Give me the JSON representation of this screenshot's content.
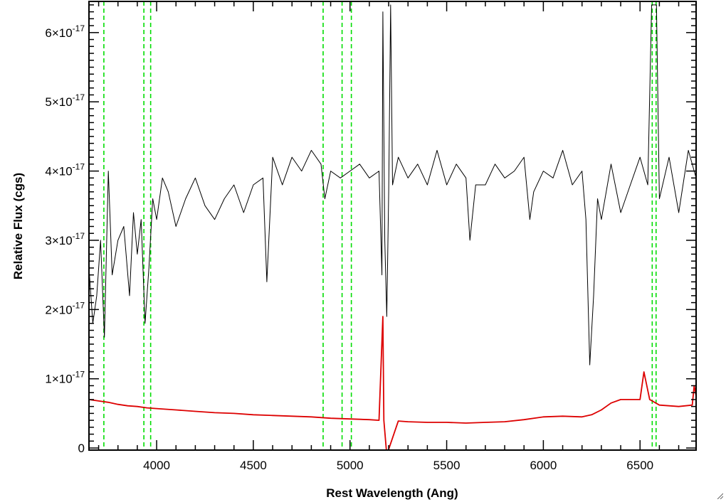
{
  "chart_data": {
    "type": "line",
    "title": "",
    "xlabel": "Rest Wavelength (Ang)",
    "ylabel": "Relative Flux (cgs)",
    "xlim": [
      3650,
      6790
    ],
    "ylim": [
      -0.03,
      6.45
    ],
    "y_scale_exponent": "-17",
    "x_ticks": [
      4000,
      4500,
      5000,
      5500,
      6000,
      6500
    ],
    "x_tick_labels": [
      "4000",
      "4500",
      "5000",
      "5500",
      "6000",
      "6500"
    ],
    "y_ticks": [
      0,
      1,
      2,
      3,
      4,
      5,
      6
    ],
    "y_tick_labels": [
      {
        "mantissa": "0",
        "exponent": ""
      },
      {
        "mantissa": "1×10",
        "exponent": "-17"
      },
      {
        "mantissa": "2×10",
        "exponent": "-17"
      },
      {
        "mantissa": "3×10",
        "exponent": "-17"
      },
      {
        "mantissa": "4×10",
        "exponent": "-17"
      },
      {
        "mantissa": "5×10",
        "exponent": "-17"
      },
      {
        "mantissa": "6×10",
        "exponent": "-17"
      }
    ],
    "grid": false,
    "colors": {
      "spectrum": "#000000",
      "error": "#dd0000",
      "lines": "#00dd00",
      "axes": "#000000"
    },
    "reference_lines": [
      3727,
      3934,
      3969,
      4861,
      4959,
      5007,
      6563,
      6583
    ],
    "series": [
      {
        "role": "spectrum",
        "x": [
          3650,
          3670,
          3690,
          3710,
          3730,
          3750,
          3770,
          3800,
          3830,
          3860,
          3880,
          3900,
          3920,
          3940,
          3960,
          3980,
          4000,
          4030,
          4060,
          4100,
          4150,
          4200,
          4250,
          4300,
          4350,
          4400,
          4450,
          4500,
          4550,
          4570,
          4600,
          4650,
          4700,
          4750,
          4800,
          4850,
          4870,
          4900,
          4950,
          5000,
          5050,
          5100,
          5150,
          5165,
          5170,
          5180,
          5190,
          5200,
          5210,
          5220,
          5250,
          5300,
          5350,
          5400,
          5450,
          5500,
          5550,
          5600,
          5620,
          5650,
          5700,
          5750,
          5800,
          5850,
          5900,
          5930,
          5950,
          6000,
          6050,
          6100,
          6150,
          6200,
          6220,
          6240,
          6260,
          6280,
          6300,
          6350,
          6400,
          6450,
          6500,
          6540,
          6560,
          6570,
          6585,
          6600,
          6650,
          6700,
          6750,
          6790
        ],
        "y": [
          2.6,
          1.8,
          2.2,
          3.0,
          1.6,
          4.0,
          2.5,
          3.0,
          3.2,
          2.2,
          3.4,
          2.8,
          3.3,
          1.8,
          2.6,
          3.6,
          3.3,
          3.9,
          3.7,
          3.2,
          3.6,
          3.9,
          3.5,
          3.3,
          3.6,
          3.8,
          3.4,
          3.8,
          3.9,
          2.4,
          4.2,
          3.8,
          4.2,
          4.0,
          4.3,
          4.1,
          3.6,
          4.0,
          3.9,
          4.0,
          4.1,
          3.9,
          4.0,
          2.5,
          6.3,
          3.0,
          1.9,
          3.7,
          6.4,
          3.8,
          4.2,
          3.9,
          4.1,
          3.8,
          4.3,
          3.8,
          4.1,
          3.9,
          3.0,
          3.8,
          3.8,
          4.1,
          3.9,
          4.0,
          4.2,
          3.3,
          3.7,
          4.0,
          3.9,
          4.3,
          3.8,
          4.0,
          3.3,
          1.2,
          2.2,
          3.6,
          3.3,
          4.1,
          3.4,
          3.8,
          4.2,
          3.8,
          6.4,
          6.4,
          6.4,
          3.6,
          4.2,
          3.4,
          4.3,
          3.9
        ]
      },
      {
        "role": "error",
        "x": [
          3650,
          3700,
          3750,
          3800,
          3850,
          3900,
          3950,
          4000,
          4100,
          4200,
          4300,
          4400,
          4500,
          4600,
          4700,
          4800,
          4900,
          5000,
          5100,
          5150,
          5170,
          5175,
          5190,
          5250,
          5300,
          5400,
          5500,
          5600,
          5700,
          5800,
          5900,
          6000,
          6100,
          6200,
          6250,
          6300,
          6350,
          6400,
          6450,
          6500,
          6520,
          6550,
          6600,
          6700,
          6770,
          6780,
          6790
        ],
        "y": [
          0.7,
          0.68,
          0.66,
          0.63,
          0.61,
          0.6,
          0.58,
          0.57,
          0.55,
          0.53,
          0.51,
          0.5,
          0.48,
          0.47,
          0.46,
          0.45,
          0.43,
          0.42,
          0.41,
          0.4,
          1.9,
          0.4,
          -0.1,
          0.39,
          0.38,
          0.37,
          0.37,
          0.36,
          0.37,
          0.38,
          0.41,
          0.45,
          0.46,
          0.45,
          0.48,
          0.55,
          0.65,
          0.7,
          0.7,
          0.7,
          1.1,
          0.7,
          0.62,
          0.6,
          0.62,
          0.9,
          0.75
        ]
      }
    ]
  },
  "ui": {
    "resize_grip_icon": "resize-grip-icon"
  }
}
